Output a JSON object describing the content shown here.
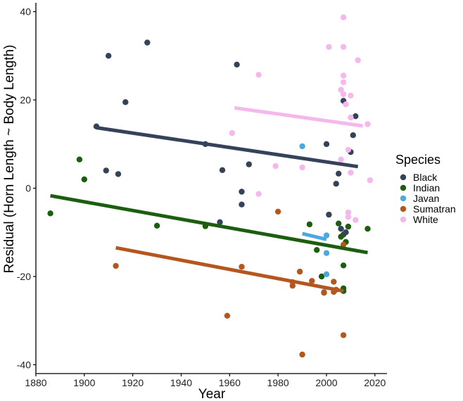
{
  "chart_data": {
    "type": "scatter",
    "xlabel": "Year",
    "ylabel": "Residual (Horn Length ~ Body Length)",
    "xlim": [
      1880,
      2025
    ],
    "ylim": [
      -42,
      42
    ],
    "xticks": [
      1880,
      1900,
      1920,
      1940,
      1960,
      1980,
      2000,
      2020
    ],
    "yticks": [
      -40,
      -20,
      0,
      20,
      40
    ],
    "grid": false,
    "legend": {
      "title": "Species",
      "position": "right"
    },
    "series": [
      {
        "name": "Black",
        "color": "#34425a",
        "points": [
          [
            1905,
            14
          ],
          [
            1909,
            4
          ],
          [
            1910,
            30
          ],
          [
            1914,
            3.2
          ],
          [
            1917,
            19.5
          ],
          [
            1926,
            33
          ],
          [
            1950,
            10
          ],
          [
            1956,
            -7.7
          ],
          [
            1957,
            4.1
          ],
          [
            1963,
            28
          ],
          [
            1965,
            -0.8
          ],
          [
            1965,
            -3.7
          ],
          [
            1968,
            5.4
          ],
          [
            2000,
            10
          ],
          [
            2001,
            -6
          ],
          [
            2004,
            1
          ],
          [
            2005,
            3.3
          ],
          [
            2006,
            -9.2
          ],
          [
            2007,
            -10.5
          ],
          [
            2007,
            19.8
          ],
          [
            2008,
            -10
          ],
          [
            2010,
            8.2
          ],
          [
            2011,
            12
          ],
          [
            2012,
            16.3
          ]
        ],
        "trend": [
          [
            1905,
            13.7
          ],
          [
            2013,
            4.9
          ]
        ]
      },
      {
        "name": "Indian",
        "color": "#1c5e10",
        "points": [
          [
            1886,
            -5.7
          ],
          [
            1898,
            6.5
          ],
          [
            1900,
            2
          ],
          [
            1930,
            -8.5
          ],
          [
            1950,
            -8.6
          ],
          [
            1993,
            -8.2
          ],
          [
            1996,
            -14
          ],
          [
            1998,
            -20
          ],
          [
            2005,
            -8
          ],
          [
            2006,
            -11
          ],
          [
            2007,
            -17.5
          ],
          [
            2007,
            -22.7
          ],
          [
            2007,
            -23.3
          ],
          [
            2008,
            -12.2
          ],
          [
            2009,
            -8.7
          ],
          [
            2017,
            -9.2
          ]
        ],
        "trend": [
          [
            1886,
            -1.7
          ],
          [
            2017,
            -14.6
          ]
        ]
      },
      {
        "name": "Javan",
        "color": "#4ea8e0",
        "points": [
          [
            1990,
            9.5
          ],
          [
            2000,
            -14.7
          ],
          [
            2000,
            -19.5
          ],
          [
            2000,
            -10.7
          ],
          [
            1999,
            -23.5
          ]
        ],
        "trend": [
          [
            1990,
            -10.3
          ],
          [
            2000,
            -11.6
          ]
        ]
      },
      {
        "name": "Sumatran",
        "color": "#b5561f",
        "points": [
          [
            1913,
            -17.6
          ],
          [
            1959,
            -28.9
          ],
          [
            1965,
            -17.8
          ],
          [
            1980,
            -5.3
          ],
          [
            1986,
            -21.3
          ],
          [
            1986,
            -22.1
          ],
          [
            1989,
            -18.9
          ],
          [
            1990,
            -37.7
          ],
          [
            1994,
            -21
          ],
          [
            1999,
            -23.7
          ],
          [
            2003,
            -21.2
          ],
          [
            2003,
            -23.5
          ],
          [
            2004,
            -23
          ],
          [
            2007,
            -12.8
          ],
          [
            2007,
            -33.3
          ]
        ],
        "trend": [
          [
            1913,
            -13.5
          ],
          [
            2007,
            -23.3
          ]
        ]
      },
      {
        "name": "White",
        "color": "#f4b8ec",
        "points": [
          [
            1961,
            12.5
          ],
          [
            1972,
            25.7
          ],
          [
            1972,
            -1.3
          ],
          [
            1979,
            5
          ],
          [
            1990,
            4.7
          ],
          [
            2001,
            32
          ],
          [
            2006,
            6.5
          ],
          [
            2006,
            22.3
          ],
          [
            2007,
            38.7
          ],
          [
            2007,
            32
          ],
          [
            2007,
            25.5
          ],
          [
            2007,
            24
          ],
          [
            2007,
            21.3
          ],
          [
            2008,
            19
          ],
          [
            2009,
            8.7
          ],
          [
            2009,
            -6.5
          ],
          [
            2009,
            -5.5
          ],
          [
            2010,
            21
          ],
          [
            2010,
            3.5
          ],
          [
            2010,
            16
          ],
          [
            2012,
            -7.2
          ],
          [
            2013,
            29
          ],
          [
            2017,
            14.5
          ],
          [
            2018,
            1.8
          ]
        ],
        "trend": [
          [
            1962,
            18.2
          ],
          [
            2015,
            14.1
          ]
        ]
      }
    ]
  }
}
